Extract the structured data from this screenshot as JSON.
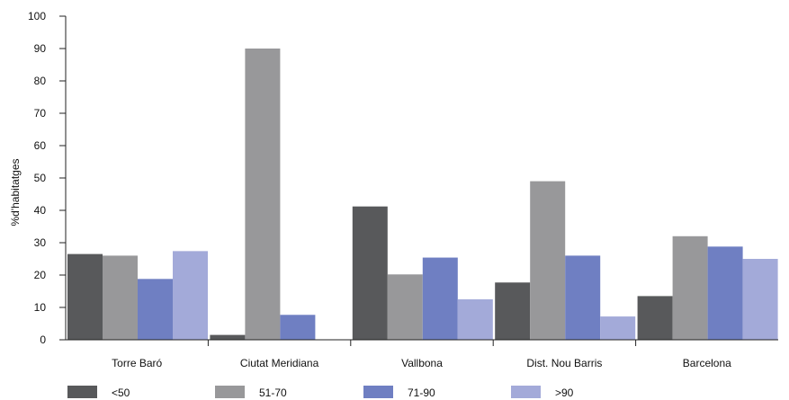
{
  "chart_data": {
    "type": "bar",
    "title": "",
    "xlabel": "",
    "ylabel": "%d'habitatges",
    "ylim": [
      0,
      100
    ],
    "yticks": [
      0,
      10,
      20,
      30,
      40,
      50,
      60,
      70,
      80,
      90,
      100
    ],
    "grid": false,
    "legend_position": "bottom",
    "categories": [
      "Torre Baró",
      "Ciutat Meridiana",
      "Vallbona",
      "Dist. Nou Barris",
      "Barcelona"
    ],
    "series": [
      {
        "name": "<50",
        "color": "#58595b",
        "values": [
          26.5,
          1.5,
          41.2,
          17.7,
          13.5
        ]
      },
      {
        "name": "51-70",
        "color": "#98989a",
        "values": [
          26,
          90,
          20.2,
          49,
          32
        ]
      },
      {
        "name": "71-90",
        "color": "#6f7fc2",
        "values": [
          18.8,
          7.7,
          25.4,
          26,
          28.8
        ]
      },
      {
        "name": ">90",
        "color": "#a3aad9",
        "values": [
          27.4,
          0,
          12.5,
          7.2,
          25
        ]
      }
    ]
  }
}
